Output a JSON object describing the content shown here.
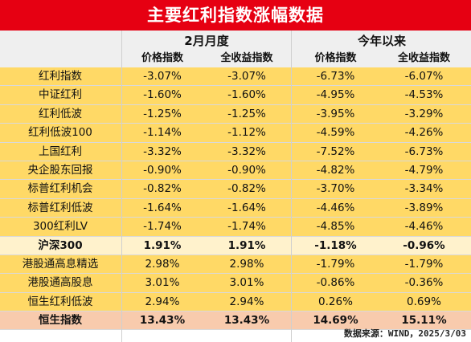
{
  "title": "主要红利指数涨幅数据",
  "groups": {
    "month": "2月月度",
    "ytd": "今年以来"
  },
  "subheaders": [
    "价格指数",
    "全收益指数",
    "价格指数",
    "全收益指数"
  ],
  "rows": [
    {
      "name": "红利指数",
      "m_price": "-3.07%",
      "m_total": "-3.07%",
      "y_price": "-6.73%",
      "y_total": "-6.07%",
      "style": "yellow",
      "bold": false
    },
    {
      "name": "中证红利",
      "m_price": "-1.60%",
      "m_total": "-1.60%",
      "y_price": "-4.95%",
      "y_total": "-4.53%",
      "style": "yellow",
      "bold": false
    },
    {
      "name": "红利低波",
      "m_price": "-1.25%",
      "m_total": "-1.25%",
      "y_price": "-3.95%",
      "y_total": "-3.29%",
      "style": "yellow",
      "bold": false
    },
    {
      "name": "红利低波100",
      "m_price": "-1.14%",
      "m_total": "-1.12%",
      "y_price": "-4.59%",
      "y_total": "-4.26%",
      "style": "yellow",
      "bold": false
    },
    {
      "name": "上国红利",
      "m_price": "-3.32%",
      "m_total": "-3.32%",
      "y_price": "-7.52%",
      "y_total": "-6.73%",
      "style": "yellow",
      "bold": false
    },
    {
      "name": "央企股东回报",
      "m_price": "-0.90%",
      "m_total": "-0.90%",
      "y_price": "-4.82%",
      "y_total": "-4.79%",
      "style": "yellow",
      "bold": false
    },
    {
      "name": "标普红利机会",
      "m_price": "-0.82%",
      "m_total": "-0.82%",
      "y_price": "-3.70%",
      "y_total": "-3.34%",
      "style": "yellow",
      "bold": false
    },
    {
      "name": "标普红利低波",
      "m_price": "-1.64%",
      "m_total": "-1.64%",
      "y_price": "-4.46%",
      "y_total": "-3.89%",
      "style": "yellow",
      "bold": false
    },
    {
      "name": "300红利LV",
      "m_price": "-1.74%",
      "m_total": "-1.74%",
      "y_price": "-4.85%",
      "y_total": "-4.46%",
      "style": "yellow",
      "bold": false
    },
    {
      "name": "沪深300",
      "m_price": "1.91%",
      "m_total": "1.91%",
      "y_price": "-1.18%",
      "y_total": "-0.96%",
      "style": "light",
      "bold": true
    },
    {
      "name": "港股通高息精选",
      "m_price": "2.98%",
      "m_total": "2.98%",
      "y_price": "-1.79%",
      "y_total": "-1.79%",
      "style": "yellow",
      "bold": false
    },
    {
      "name": "港股通高股息",
      "m_price": "3.01%",
      "m_total": "3.01%",
      "y_price": "-0.86%",
      "y_total": "-0.36%",
      "style": "yellow",
      "bold": false
    },
    {
      "name": "恒生红利低波",
      "m_price": "2.94%",
      "m_total": "2.94%",
      "y_price": "0.26%",
      "y_total": "0.69%",
      "style": "yellow",
      "bold": false
    },
    {
      "name": "恒生指数",
      "m_price": "13.43%",
      "m_total": "13.43%",
      "y_price": "14.69%",
      "y_total": "15.11%",
      "style": "red",
      "bold": true
    }
  ],
  "source": "数据来源：WIND，2025/3/03"
}
